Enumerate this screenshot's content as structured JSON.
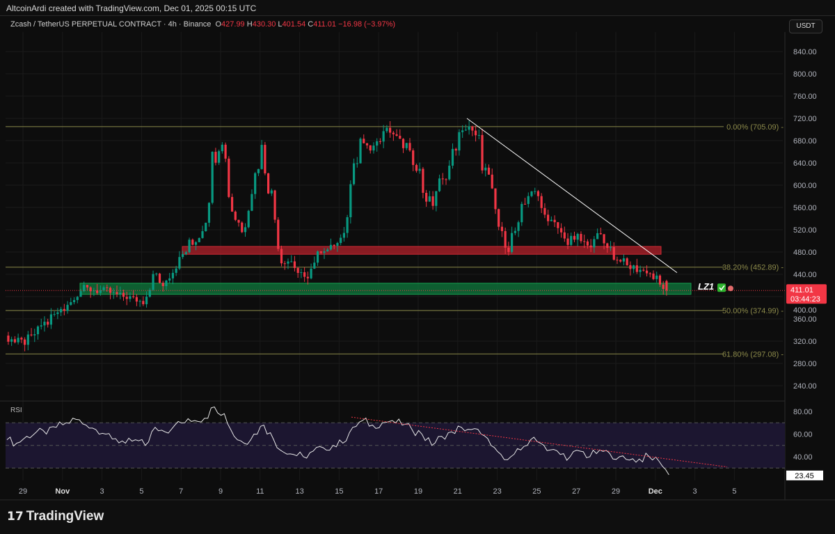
{
  "header": {
    "credit": "AltcoinArdi created with TradingView.com, Dec 01, 2025 00:15 UTC"
  },
  "legend": {
    "symbol": "Zcash / TetherUS PERPETUAL CONTRACT · 4h · Binance",
    "o_label": "O",
    "o": "427.99",
    "h_label": "H",
    "h": "430.30",
    "l_label": "L",
    "l": "401.54",
    "c_label": "C",
    "c": "411.01",
    "change": "−16.98 (−3.97%)"
  },
  "currency": "USDT",
  "rsi_label": "RSI",
  "footer": {
    "logo": "TradingView",
    "logo_icon": "tradingview-logo-icon"
  },
  "colors": {
    "up": "#089981",
    "down": "#f23645",
    "fib": "#8c8a4a",
    "resistance_zone": "#b2202a",
    "support_zone": "#0f7a3e"
  },
  "annotations": {
    "lz1": "LZ1",
    "lz1_icons": [
      "check-icon",
      "target-icon"
    ]
  },
  "chart_data": [
    {
      "type": "candlestick",
      "ylim": [
        220,
        860
      ],
      "price_ticks": [
        "840.00",
        "800.00",
        "760.00",
        "720.00",
        "680.00",
        "640.00",
        "600.00",
        "560.00",
        "520.00",
        "480.00",
        "440.00",
        "400.00",
        "360.00",
        "320.00",
        "280.00",
        "240.00"
      ],
      "x_ticks": [
        "29",
        "Nov",
        "3",
        "5",
        "7",
        "9",
        "11",
        "13",
        "15",
        "17",
        "19",
        "21",
        "23",
        "25",
        "27",
        "29",
        "Dec",
        "3",
        "5"
      ],
      "last_price": "411.01",
      "countdown": "03:44:23",
      "fib_levels": [
        {
          "label": "0.00% (705.09)",
          "value": 705.09
        },
        {
          "label": "38.20% (452.89)",
          "value": 452.89
        },
        {
          "label": "50.00% (374.99)",
          "value": 374.99
        },
        {
          "label": "61.80% (297.08)",
          "value": 297.08
        }
      ],
      "zones": [
        {
          "type": "resistance",
          "from": 476,
          "to": 490
        },
        {
          "type": "support",
          "from": 404,
          "to": 424
        }
      ],
      "trendline": {
        "from": {
          "date": "Nov 20 12:00",
          "price": 720
        },
        "to": {
          "date": "Dec 01",
          "price": 443
        }
      },
      "closes_half_day_from_oct28": [
        330,
        320,
        318,
        335,
        350,
        365,
        380,
        398,
        415,
        412,
        410,
        405,
        400,
        395,
        390,
        440,
        420,
        450,
        480,
        500,
        520,
        640,
        690,
        560,
        520,
        600,
        670,
        580,
        470,
        460,
        430,
        450,
        480,
        490,
        500,
        600,
        680,
        660,
        690,
        700,
        680,
        660,
        620,
        560,
        600,
        630,
        690,
        700,
        680,
        600,
        520,
        490,
        530,
        590,
        580,
        540,
        520,
        500,
        505,
        490,
        510,
        490,
        470,
        455,
        450,
        445,
        430,
        411
      ]
    },
    {
      "type": "line",
      "name": "RSI",
      "ylim": [
        20,
        85
      ],
      "ticks": [
        "80.00",
        "60.00",
        "40.00"
      ],
      "bands": [
        30,
        50,
        70
      ],
      "last": "23.45",
      "values_half_day_from_oct28": [
        55,
        52,
        58,
        62,
        60,
        66,
        70,
        73,
        68,
        64,
        60,
        56,
        52,
        55,
        50,
        66,
        62,
        68,
        70,
        72,
        74,
        84,
        78,
        58,
        52,
        60,
        68,
        55,
        44,
        42,
        40,
        45,
        48,
        50,
        52,
        66,
        72,
        68,
        70,
        72,
        68,
        64,
        60,
        50,
        58,
        62,
        66,
        64,
        60,
        50,
        42,
        40,
        46,
        55,
        52,
        46,
        42,
        40,
        45,
        40,
        46,
        43,
        40,
        37,
        38,
        40,
        36,
        24
      ],
      "trendline": {
        "from": {
          "date": "Nov 15",
          "value": 75
        },
        "to": {
          "date": "Dec 04",
          "value": 31
        }
      }
    }
  ]
}
